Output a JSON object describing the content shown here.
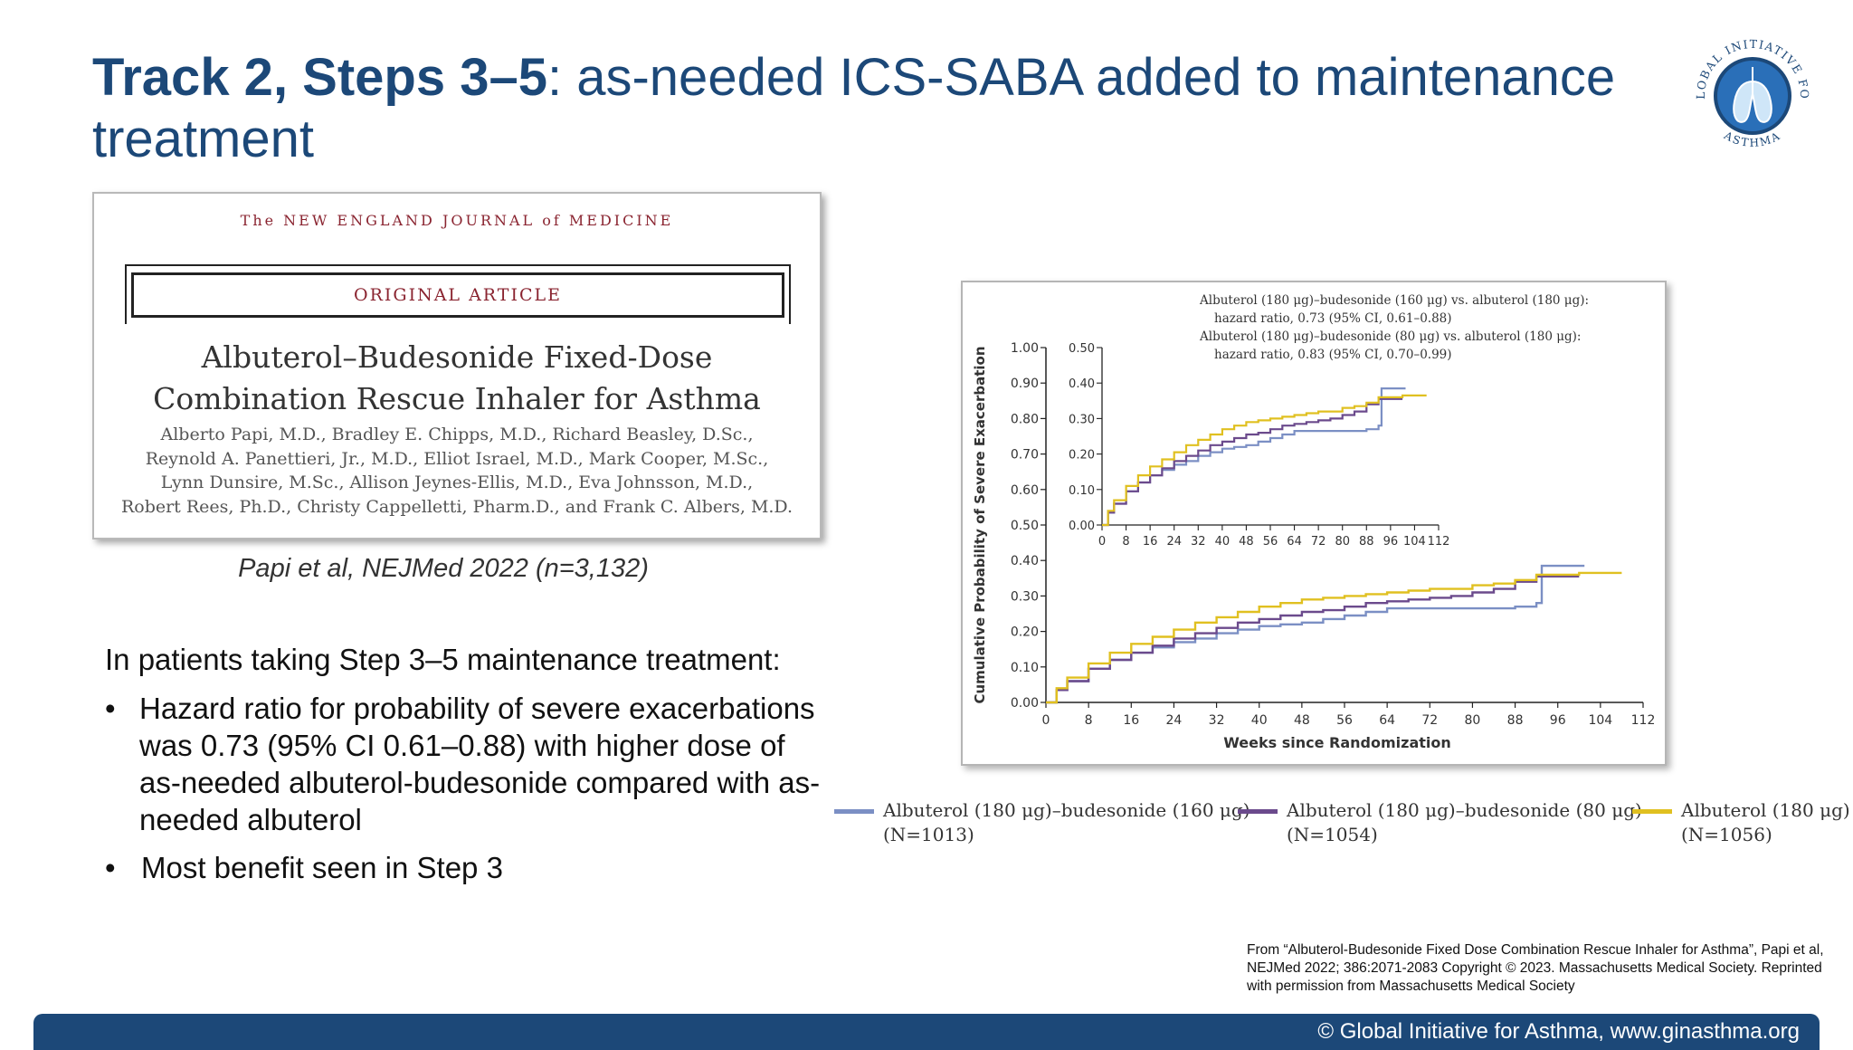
{
  "slide": {
    "title_bold": "Track 2, Steps 3–5",
    "title_rest": ": as-needed ICS-SABA added to maintenance treatment",
    "logo_text_top": "GLOBAL INITIATIVE FOR",
    "logo_text_bottom": "ASTHMA",
    "citation": "Papi et al, NEJMed 2022 (n=3,132)",
    "patients_heading": "In patients taking Step 3–5 maintenance treatment:",
    "bullets": [
      "Hazard ratio for probability of severe exacerbations was 0.73 (95% CI 0.61–0.88) with higher dose of as-needed albuterol-budesonide compared with as-needed albuterol",
      "Most benefit seen in Step 3"
    ],
    "bullet_symbol": "•",
    "source_note": "From “Albuterol-Budesonide Fixed Dose Combination Rescue Inhaler for Asthma”, Papi et al, NEJMed 2022; 386:2071-2083 Copyright © 2023. Massachusetts Medical Society. Reprinted with permission from Massachusetts Medical Society",
    "footer": "© Global Initiative for Asthma, www.ginasthma.org"
  },
  "nejm": {
    "journal": "The NEW ENGLAND JOURNAL of MEDICINE",
    "section": "ORIGINAL ARTICLE",
    "title_line1": "Albuterol–Budesonide Fixed-Dose",
    "title_line2": "Combination Rescue Inhaler for Asthma",
    "authors": [
      "Alberto Papi, M.D., Bradley E. Chipps, M.D., Richard Beasley, D.Sc.,",
      "Reynold A. Panettieri, Jr., M.D., Elliot Israel, M.D., Mark Cooper, M.Sc.,",
      "Lynn Dunsire, M.Sc., Allison Jeynes-Ellis, M.D., Eva Johnsson, M.D.,",
      "Robert Rees, Ph.D., Christy Cappelletti, Pharm.D., and Frank C. Albers, M.D."
    ]
  },
  "chart_data": {
    "type": "line",
    "xlabel": "Weeks since Randomization",
    "ylabel": "Cumulative Probability of Severe Exacerbation",
    "xlim": [
      0,
      112
    ],
    "ylim": [
      0,
      1.0
    ],
    "x_ticks": [
      "0",
      "8",
      "16",
      "24",
      "32",
      "40",
      "48",
      "56",
      "64",
      "72",
      "80",
      "88",
      "96",
      "104",
      "112"
    ],
    "y_ticks": [
      "0.00",
      "0.10",
      "0.20",
      "0.30",
      "0.40",
      "0.50",
      "0.60",
      "0.70",
      "0.80",
      "0.90",
      "1.00"
    ],
    "inset": {
      "ylim": [
        0,
        0.5
      ],
      "y_ticks": [
        "0.00",
        "0.10",
        "0.20",
        "0.30",
        "0.40",
        "0.50"
      ],
      "x_ticks": [
        "0",
        "8",
        "16",
        "24",
        "32",
        "40",
        "48",
        "56",
        "64",
        "72",
        "80",
        "88",
        "96",
        "104",
        "112"
      ]
    },
    "annotations": [
      "Albuterol (180 μg)–budesonide (160 μg) vs. albuterol (180 μg):",
      "hazard ratio, 0.73 (95% CI, 0.61–0.88)",
      "Albuterol (180 μg)–budesonide (80 μg) vs. albuterol (180 μg):",
      "hazard ratio, 0.83 (95% CI, 0.70–0.99)"
    ],
    "series": [
      {
        "name": "Albuterol (180 μg)–budesonide (160 μg)",
        "n_label": "(N=1013)",
        "color": "#7b8fc4",
        "x": [
          0,
          2,
          4,
          8,
          12,
          16,
          20,
          24,
          28,
          32,
          36,
          40,
          44,
          48,
          52,
          56,
          60,
          64,
          68,
          72,
          76,
          80,
          84,
          88,
          92,
          93,
          101
        ],
        "y": [
          0,
          0.035,
          0.06,
          0.095,
          0.12,
          0.14,
          0.155,
          0.17,
          0.18,
          0.195,
          0.205,
          0.215,
          0.22,
          0.225,
          0.235,
          0.245,
          0.255,
          0.265,
          0.265,
          0.265,
          0.265,
          0.265,
          0.265,
          0.27,
          0.28,
          0.385,
          0.385
        ]
      },
      {
        "name": "Albuterol (180 μg)–budesonide (80 μg)",
        "n_label": "(N=1054)",
        "color": "#6b4a8c",
        "x": [
          0,
          2,
          4,
          8,
          12,
          16,
          20,
          24,
          28,
          32,
          36,
          40,
          44,
          48,
          52,
          56,
          60,
          64,
          68,
          72,
          76,
          80,
          84,
          88,
          92,
          100
        ],
        "y": [
          0,
          0.035,
          0.06,
          0.095,
          0.12,
          0.14,
          0.16,
          0.18,
          0.195,
          0.21,
          0.225,
          0.235,
          0.245,
          0.255,
          0.26,
          0.27,
          0.28,
          0.285,
          0.29,
          0.295,
          0.3,
          0.31,
          0.32,
          0.34,
          0.355,
          0.355
        ]
      },
      {
        "name": "Albuterol (180 μg)",
        "n_label": "(N=1056)",
        "color": "#e0c020",
        "x": [
          0,
          2,
          4,
          8,
          12,
          16,
          20,
          24,
          28,
          32,
          36,
          40,
          44,
          48,
          52,
          56,
          60,
          64,
          68,
          72,
          76,
          80,
          84,
          88,
          92,
          100,
          108
        ],
        "y": [
          0,
          0.04,
          0.07,
          0.11,
          0.14,
          0.165,
          0.185,
          0.205,
          0.225,
          0.24,
          0.255,
          0.27,
          0.28,
          0.29,
          0.295,
          0.3,
          0.305,
          0.31,
          0.315,
          0.32,
          0.32,
          0.33,
          0.335,
          0.345,
          0.36,
          0.365,
          0.365
        ]
      }
    ]
  }
}
